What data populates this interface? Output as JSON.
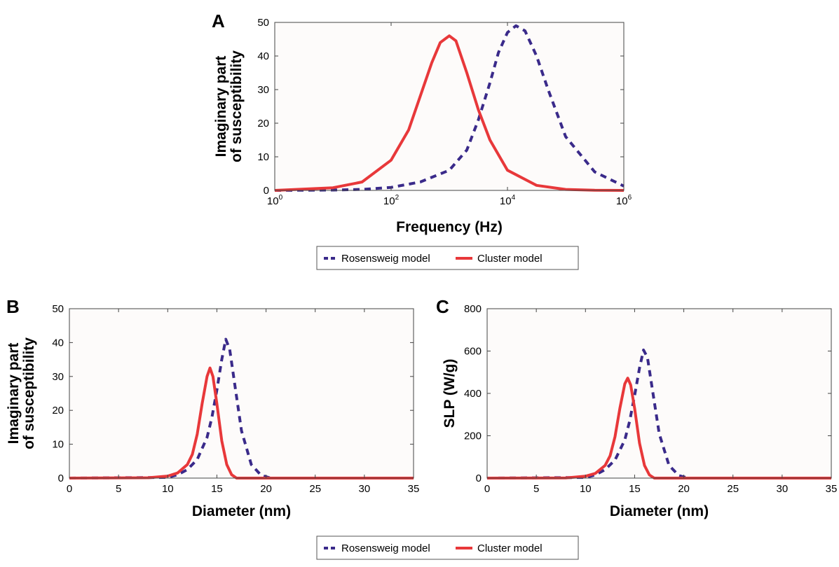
{
  "colors": {
    "rosensweig": "#3a2a8a",
    "cluster": "#e8383a",
    "axes": "#444444",
    "plot_bg": "#fdfbfa"
  },
  "legend": [
    {
      "label": "Rosensweig model",
      "style": "dashed",
      "color": "#3a2a8a"
    },
    {
      "label": "Cluster model",
      "style": "solid",
      "color": "#e8383a"
    }
  ],
  "chart_data": [
    {
      "panel": "A",
      "type": "line",
      "xscale": "log",
      "xlabel": "Frequency (Hz)",
      "ylabel": [
        "Imaginary part",
        "of susceptibility"
      ],
      "xlim": [
        1,
        1000000
      ],
      "ylim": [
        0,
        50
      ],
      "xticks": [
        1,
        100,
        10000,
        1000000
      ],
      "xtick_labels": [
        {
          "base": "10",
          "exp": "0"
        },
        {
          "base": "10",
          "exp": "2"
        },
        {
          "base": "10",
          "exp": "4"
        },
        {
          "base": "10",
          "exp": "6"
        }
      ],
      "yticks": [
        0,
        10,
        20,
        30,
        40,
        50
      ],
      "grid": false,
      "series": [
        {
          "name": "Rosensweig model",
          "style": "dashed",
          "x": [
            1,
            10,
            31.6,
            100,
            316,
            1000,
            2000,
            3160,
            5000,
            7000,
            10000,
            14000,
            20000,
            31600,
            50000,
            100000,
            316000,
            1000000
          ],
          "y": [
            0,
            0.1,
            0.3,
            0.9,
            2.5,
            6,
            12,
            21,
            32,
            41,
            47,
            49,
            47.5,
            40,
            30,
            16,
            5.5,
            1.3
          ]
        },
        {
          "name": "Cluster model",
          "style": "solid",
          "x": [
            1,
            10,
            31.6,
            100,
            200,
            316,
            500,
            700,
            1000,
            1300,
            2000,
            3160,
            5000,
            10000,
            31600,
            100000,
            316000,
            1000000
          ],
          "y": [
            0,
            0.8,
            2.5,
            9,
            18,
            28,
            38,
            44,
            46,
            44.5,
            35,
            24,
            15,
            6,
            1.5,
            0.3,
            0.05,
            0
          ]
        }
      ]
    },
    {
      "panel": "B",
      "type": "line",
      "xlabel": "Diameter (nm)",
      "ylabel": [
        "Imaginary part",
        "of susceptibility"
      ],
      "xlim": [
        0,
        35
      ],
      "ylim": [
        0,
        50
      ],
      "xticks": [
        0,
        5,
        10,
        15,
        20,
        25,
        30,
        35
      ],
      "yticks": [
        0,
        10,
        20,
        30,
        40,
        50
      ],
      "grid": false,
      "series": [
        {
          "name": "Rosensweig model",
          "style": "dashed",
          "x": [
            0,
            10,
            11,
            12,
            13,
            14,
            14.5,
            15,
            15.5,
            15.9,
            16.3,
            16.8,
            17.5,
            18.5,
            19.5,
            20.5,
            35
          ],
          "y": [
            0,
            0.2,
            1,
            2.5,
            5.5,
            12,
            18,
            26,
            35,
            41,
            38,
            28,
            14,
            4,
            0.8,
            0,
            0
          ]
        },
        {
          "name": "Cluster model",
          "style": "solid",
          "x": [
            0,
            8,
            10,
            11,
            12,
            12.5,
            13,
            13.5,
            14,
            14.3,
            14.6,
            15,
            15.5,
            16,
            16.5,
            17,
            35
          ],
          "y": [
            0,
            0.1,
            0.6,
            1.5,
            4,
            7,
            13,
            22,
            30,
            32.5,
            30,
            22,
            11,
            4,
            1,
            0,
            0
          ]
        }
      ]
    },
    {
      "panel": "C",
      "type": "line",
      "xlabel": "Diameter (nm)",
      "ylabel": [
        "SLP (W/g)"
      ],
      "xlim": [
        0,
        35
      ],
      "ylim": [
        0,
        800
      ],
      "xticks": [
        0,
        5,
        10,
        15,
        20,
        25,
        30,
        35
      ],
      "yticks": [
        0,
        200,
        400,
        600,
        800
      ],
      "grid": false,
      "series": [
        {
          "name": "Rosensweig model",
          "style": "dashed",
          "x": [
            0,
            10,
            11,
            12,
            13,
            14,
            14.5,
            15,
            15.5,
            15.9,
            16.3,
            16.8,
            17.5,
            18.5,
            19.5,
            20.5,
            35
          ],
          "y": [
            0,
            3,
            15,
            40,
            85,
            180,
            270,
            390,
            520,
            605,
            570,
            420,
            210,
            60,
            12,
            0,
            0
          ]
        },
        {
          "name": "Cluster model",
          "style": "solid",
          "x": [
            0,
            8,
            10,
            11,
            12,
            12.5,
            13,
            13.5,
            14,
            14.3,
            14.6,
            15,
            15.5,
            16,
            16.5,
            17,
            35
          ],
          "y": [
            0,
            1,
            9,
            22,
            60,
            105,
            195,
            330,
            445,
            472,
            440,
            330,
            165,
            60,
            15,
            0,
            0
          ]
        }
      ]
    }
  ]
}
